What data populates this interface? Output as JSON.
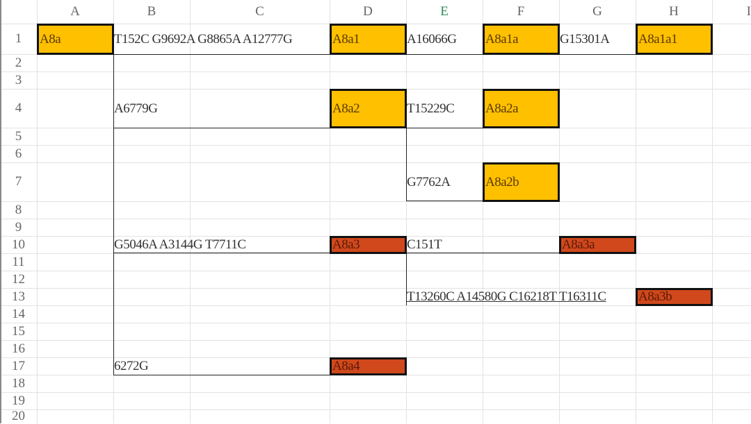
{
  "columns": [
    "A",
    "B",
    "C",
    "D",
    "E",
    "F",
    "G",
    "H",
    "I"
  ],
  "active_column": "E",
  "rows": [
    "1",
    "2",
    "3",
    "4",
    "5",
    "6",
    "7",
    "8",
    "9",
    "10",
    "11",
    "12",
    "13",
    "14",
    "15",
    "16",
    "17",
    "18",
    "19",
    "20"
  ],
  "colors": {
    "level2": "#FFC000",
    "level3": "#D0481C",
    "active_header": "#2e8b57"
  },
  "cells": [
    {
      "ref": "A1",
      "text": "A8a",
      "fill": "level2",
      "end": "A"
    },
    {
      "ref": "B1",
      "text": "T152C G9692A G8865A A12777G"
    },
    {
      "ref": "D1",
      "text": "A8a1",
      "fill": "level2",
      "end": "D"
    },
    {
      "ref": "E1",
      "text": "A16066G"
    },
    {
      "ref": "F1",
      "text": "A8a1a",
      "fill": "level2",
      "end": "F"
    },
    {
      "ref": "G1",
      "text": "G15301A"
    },
    {
      "ref": "H1",
      "text": "A8a1a1",
      "fill": "level2",
      "end": "H"
    },
    {
      "ref": "B4",
      "text": "A6779G"
    },
    {
      "ref": "D4",
      "text": "A8a2",
      "fill": "level2",
      "end": "D"
    },
    {
      "ref": "E4",
      "text": "T15229C"
    },
    {
      "ref": "F4",
      "text": "A8a2a",
      "fill": "level2",
      "end": "F"
    },
    {
      "ref": "E7",
      "text": "G7762A"
    },
    {
      "ref": "F7",
      "text": "A8a2b",
      "fill": "level2",
      "end": "F"
    },
    {
      "ref": "B10",
      "text": "G5046A A3144G T7711C"
    },
    {
      "ref": "D10",
      "text": "A8a3",
      "fill": "level3",
      "end": "D"
    },
    {
      "ref": "E10",
      "text": "C151T"
    },
    {
      "ref": "G10",
      "text": "A8a3a",
      "fill": "level3",
      "end": "G"
    },
    {
      "ref": "E13",
      "text": "T13260C A14580G C16218T T16311C",
      "underline": true
    },
    {
      "ref": "H13",
      "text": "A8a3b",
      "fill": "level3",
      "end": "H"
    },
    {
      "ref": "B17",
      "text": "6272G"
    },
    {
      "ref": "D17",
      "text": "A8a4",
      "fill": "level3",
      "end": "D"
    }
  ]
}
